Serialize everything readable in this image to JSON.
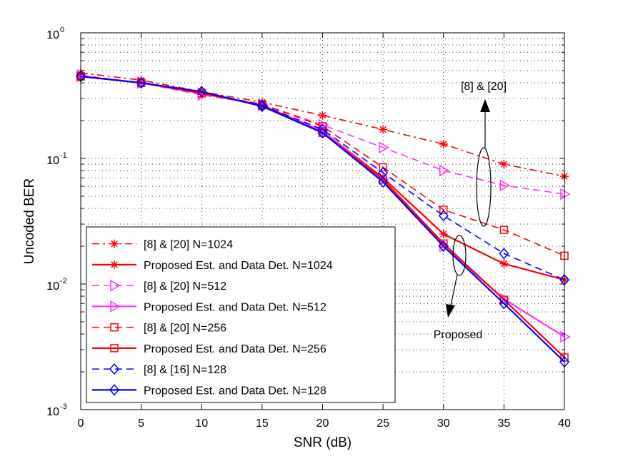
{
  "chart_data": {
    "type": "line",
    "title": "",
    "xlabel": "SNR (dB)",
    "ylabel": "Uncoded BER",
    "yscale": "log",
    "xlim": [
      0,
      40
    ],
    "ylim": [
      0.001,
      1
    ],
    "grid": true,
    "x": [
      0,
      5,
      10,
      15,
      20,
      25,
      30,
      35,
      40
    ],
    "x_ticks": [
      "0",
      "5",
      "10",
      "15",
      "20",
      "25",
      "30",
      "35",
      "40"
    ],
    "y_ticks": [
      {
        "base": "10",
        "exp": "-3"
      },
      {
        "base": "10",
        "exp": "-2"
      },
      {
        "base": "10",
        "exp": "-1"
      },
      {
        "base": "10",
        "exp": "0"
      }
    ],
    "legend_position": "bottom-left",
    "series": [
      {
        "name": "[8] & [20] N=1024",
        "color": "#ff0000",
        "dash": "dashdot",
        "marker": "star",
        "values": [
          0.48,
          0.42,
          0.34,
          0.28,
          0.22,
          0.17,
          0.13,
          0.09,
          0.072
        ]
      },
      {
        "name": "Proposed Est. and Data Det. N=1024",
        "color": "#ff0000",
        "dash": "solid",
        "marker": "star",
        "values": [
          0.45,
          0.4,
          0.34,
          0.26,
          0.165,
          0.07,
          0.025,
          0.0145,
          0.0108
        ]
      },
      {
        "name": "[8] & [20] N=512",
        "color": "#ff33ff",
        "dash": "dashed",
        "marker": "triangle-right",
        "values": [
          0.46,
          0.4,
          0.32,
          0.27,
          0.185,
          0.122,
          0.08,
          0.061,
          0.052
        ]
      },
      {
        "name": "Proposed Est. and Data Det. N=512",
        "color": "#ff33ff",
        "dash": "solid",
        "marker": "triangle-right",
        "values": [
          0.45,
          0.4,
          0.33,
          0.265,
          0.165,
          0.068,
          0.02,
          0.0076,
          0.0038
        ]
      },
      {
        "name": "[8] & [20] N=256",
        "color": "#ff0000",
        "dash": "dashed",
        "marker": "square",
        "values": [
          0.45,
          0.4,
          0.33,
          0.27,
          0.18,
          0.085,
          0.039,
          0.027,
          0.0168
        ]
      },
      {
        "name": "Proposed Est. and Data Det. N=256",
        "color": "#ff0000",
        "dash": "solid",
        "marker": "square",
        "values": [
          0.45,
          0.4,
          0.33,
          0.265,
          0.16,
          0.068,
          0.021,
          0.0075,
          0.0026
        ]
      },
      {
        "name": "[8] & [16] N=128",
        "color": "#0000ff",
        "dash": "dashed",
        "marker": "diamond",
        "values": [
          0.45,
          0.4,
          0.34,
          0.265,
          0.17,
          0.077,
          0.035,
          0.0175,
          0.0108
        ]
      },
      {
        "name": "Proposed Est. and Data Det. N=128",
        "color": "#0000ff",
        "dash": "solid",
        "marker": "diamond",
        "values": [
          0.45,
          0.4,
          0.34,
          0.26,
          0.16,
          0.065,
          0.02,
          0.007,
          0.0024
        ]
      }
    ],
    "annotations": [
      {
        "text": "[8] & [20]",
        "group": "baseline",
        "arrow": "up"
      },
      {
        "text": "Proposed",
        "group": "proposed",
        "arrow": "down"
      }
    ]
  }
}
